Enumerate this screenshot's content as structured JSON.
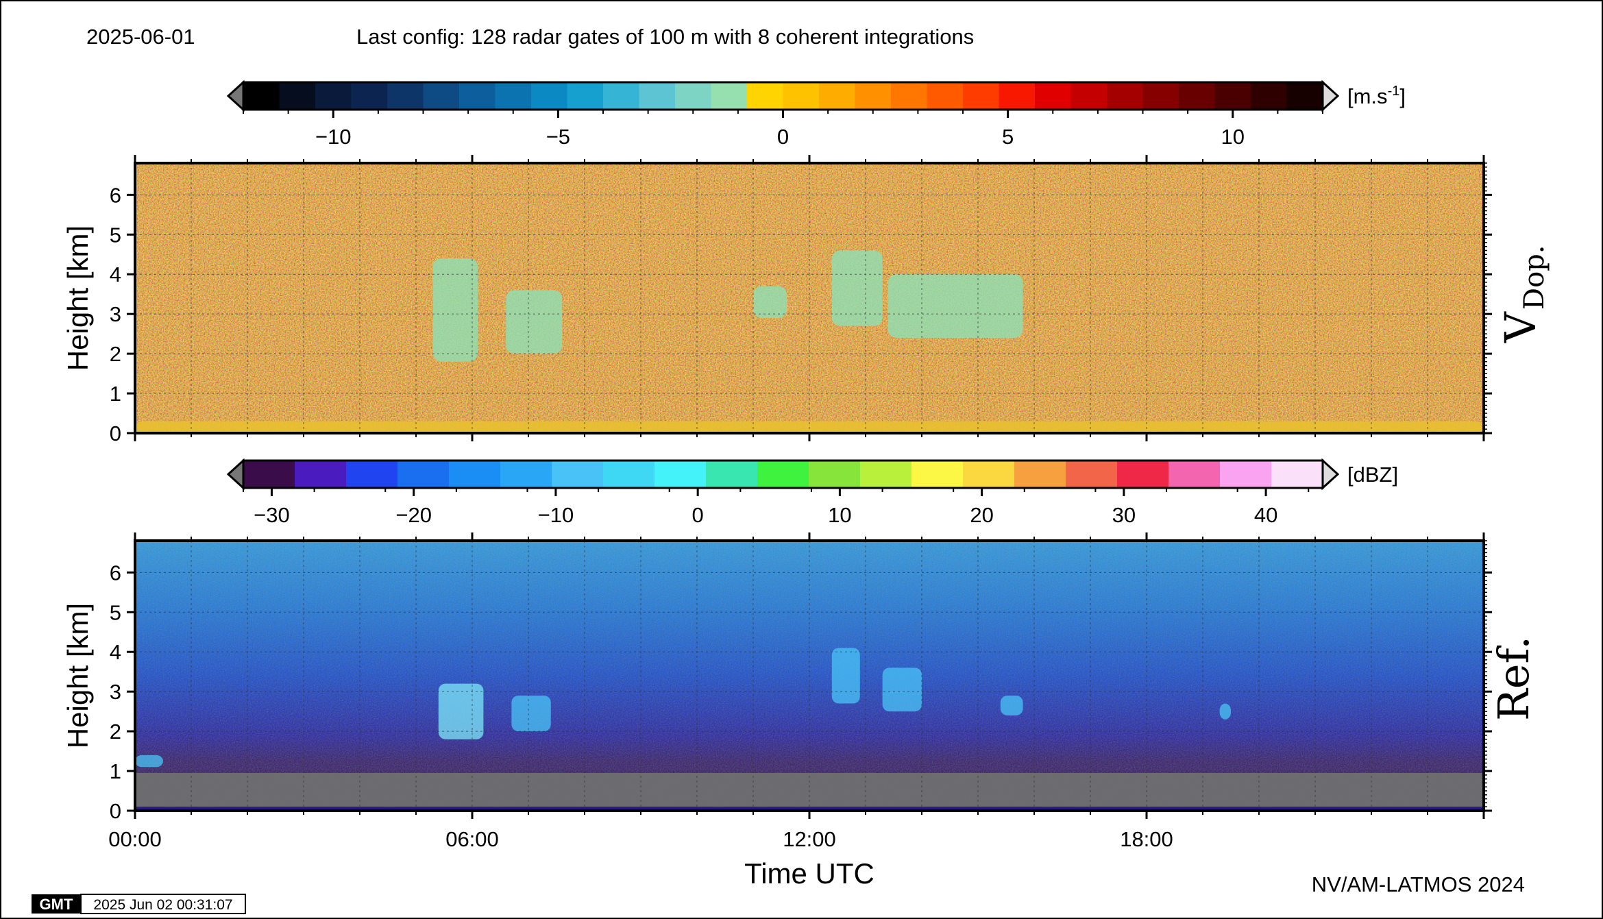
{
  "header": {
    "date": "2025-06-01",
    "config": "Last config: 128 radar gates of 100 m with 8 coherent integrations"
  },
  "footer": {
    "gmt_logo": "GMT",
    "timestamp": "2025 Jun 02 00:31:07",
    "credit": "NV/AM-LATMOS 2024"
  },
  "chart_data": [
    {
      "type": "heatmap",
      "title": "",
      "panel_label_main": "V",
      "panel_label_sub": "Dop.",
      "ylabel": "Height [km]",
      "xlabel": "",
      "ylim": [
        0,
        6.8
      ],
      "yticks": [
        "0",
        "1",
        "2",
        "3",
        "4",
        "5",
        "6"
      ],
      "xlim": [
        0,
        24
      ],
      "grid": true,
      "colorbar": {
        "unit_main": "[m.s",
        "unit_sup": "-1",
        "unit_tail": "]",
        "range": [
          -12,
          12
        ],
        "ticks": [
          {
            "value": -10,
            "label": "−10"
          },
          {
            "value": -5,
            "label": "−5"
          },
          {
            "value": 0,
            "label": "0"
          },
          {
            "value": 5,
            "label": "5"
          },
          {
            "value": 10,
            "label": "10"
          }
        ],
        "colors": [
          "#000000",
          "#050d1f",
          "#0a1a3a",
          "#0c2550",
          "#0d3568",
          "#0e4a84",
          "#0c5f9c",
          "#0b74b0",
          "#0a89c2",
          "#16a0cf",
          "#36b4d6",
          "#5cc4d2",
          "#7ed4c4",
          "#96e0b0",
          "#ffd400",
          "#ffc200",
          "#ffac00",
          "#ff9100",
          "#ff7600",
          "#ff5a00",
          "#ff3c00",
          "#f81800",
          "#e00000",
          "#c40000",
          "#a50000",
          "#860000",
          "#680000",
          "#4a0000",
          "#2e0000",
          "#160000"
        ]
      },
      "features": [
        {
          "kind": "near-ground positive velocity layer",
          "time_h": [
            0,
            24
          ],
          "height_km": [
            0,
            0.3
          ]
        },
        {
          "kind": "weak downward echoes",
          "time_h": [
            5.3,
            6.1
          ],
          "height_km": [
            1.8,
            4.4
          ]
        },
        {
          "kind": "weak downward echoes",
          "time_h": [
            6.6,
            7.6
          ],
          "height_km": [
            2.0,
            3.6
          ]
        },
        {
          "kind": "weak downward echoes",
          "time_h": [
            11.0,
            11.6
          ],
          "height_km": [
            2.9,
            3.7
          ]
        },
        {
          "kind": "weak downward echoes",
          "time_h": [
            12.4,
            13.3
          ],
          "height_km": [
            2.7,
            4.6
          ]
        },
        {
          "kind": "weak downward echoes",
          "time_h": [
            13.4,
            15.8
          ],
          "height_km": [
            2.4,
            4.0
          ]
        }
      ]
    },
    {
      "type": "heatmap",
      "title": "",
      "panel_label_main": "Ref.",
      "ylabel": "Height [km]",
      "xlabel": "Time UTC",
      "ylim": [
        0,
        6.8
      ],
      "yticks": [
        "0",
        "1",
        "2",
        "3",
        "4",
        "5",
        "6"
      ],
      "xlim": [
        0,
        24
      ],
      "xticks": [
        {
          "value": 0,
          "label": "00:00"
        },
        {
          "value": 6,
          "label": "06:00"
        },
        {
          "value": 12,
          "label": "12:00"
        },
        {
          "value": 18,
          "label": "18:00"
        }
      ],
      "grid": true,
      "colorbar": {
        "unit_main": "[dBZ]",
        "range": [
          -32,
          44
        ],
        "ticks": [
          {
            "value": -30,
            "label": "−30"
          },
          {
            "value": -20,
            "label": "−20"
          },
          {
            "value": -10,
            "label": "−10"
          },
          {
            "value": 0,
            "label": "0"
          },
          {
            "value": 10,
            "label": "10"
          },
          {
            "value": 20,
            "label": "20"
          },
          {
            "value": 30,
            "label": "30"
          },
          {
            "value": 40,
            "label": "40"
          }
        ],
        "colors": [
          "#3a0d4a",
          "#4a1bbf",
          "#1f44f0",
          "#1a6ff0",
          "#1b8ef5",
          "#2aa6f7",
          "#48c2f7",
          "#3ed8f4",
          "#44f2fa",
          "#3ae6b0",
          "#3ef23e",
          "#86e43a",
          "#b8f03c",
          "#fbf744",
          "#fbd740",
          "#f6a040",
          "#f26548",
          "#f02848",
          "#f465b0",
          "#f9a3f1",
          "#fbe0f9"
        ]
      },
      "features": [
        {
          "kind": "ground clutter (grey)",
          "time_h": [
            0,
            24
          ],
          "height_km": [
            0.1,
            0.95
          ]
        },
        {
          "kind": "low-level echo",
          "time_h": [
            0,
            0.5
          ],
          "height_km": [
            1.1,
            1.4
          ],
          "dbz": -15
        },
        {
          "kind": "precipitation streak",
          "time_h": [
            5.4,
            6.2
          ],
          "height_km": [
            1.8,
            3.2
          ],
          "dbz": -3
        },
        {
          "kind": "precipitation streak",
          "time_h": [
            6.7,
            7.4
          ],
          "height_km": [
            2.0,
            2.9
          ],
          "dbz": -10
        },
        {
          "kind": "precipitation streak",
          "time_h": [
            12.4,
            12.9
          ],
          "height_km": [
            2.7,
            4.1
          ],
          "dbz": -8
        },
        {
          "kind": "precipitation streak",
          "time_h": [
            13.3,
            14.0
          ],
          "height_km": [
            2.5,
            3.6
          ],
          "dbz": -10
        },
        {
          "kind": "precipitation streak",
          "time_h": [
            15.4,
            15.8
          ],
          "height_km": [
            2.4,
            2.9
          ],
          "dbz": -12
        },
        {
          "kind": "precipitation streak",
          "time_h": [
            19.3,
            19.5
          ],
          "height_km": [
            2.3,
            2.7
          ],
          "dbz": -12
        }
      ]
    }
  ]
}
